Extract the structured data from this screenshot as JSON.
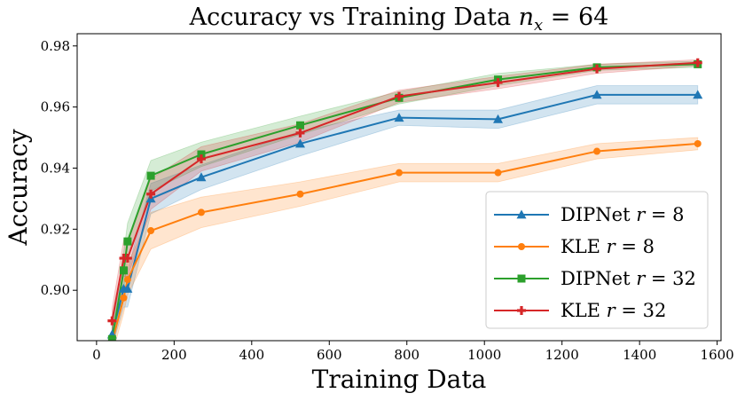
{
  "chart_data": {
    "type": "line",
    "title": "Accuracy vs Training Data n_x = 64",
    "title_parts": {
      "main": "Accuracy vs Training Data ",
      "var": "n",
      "sub": "x",
      "rest": " = 64"
    },
    "xlabel": "Training Data",
    "ylabel": "Accuracy",
    "xlim": [
      -50,
      1610
    ],
    "ylim": [
      0.8835,
      0.984
    ],
    "xticks": [
      0,
      200,
      400,
      600,
      800,
      1000,
      1200,
      1400,
      1600
    ],
    "yticks": [
      0.9,
      0.92,
      0.94,
      0.96,
      0.98
    ],
    "ytick_labels": [
      "0.90",
      "0.92",
      "0.94",
      "0.96",
      "0.98"
    ],
    "legend_position": "lower-right",
    "x": [
      40,
      70,
      80,
      140,
      270,
      525,
      780,
      1035,
      1290,
      1550
    ],
    "series": [
      {
        "name": "DIPNet r = 8",
        "legend": {
          "base": "DIPNet ",
          "var": "r",
          "rest": " = 8"
        },
        "color": "#1f77b4",
        "marker": "triangle",
        "values": [
          0.8855,
          0.9005,
          0.9005,
          0.93,
          0.937,
          0.948,
          0.9565,
          0.956,
          0.964,
          0.964
        ],
        "band": [
          0.004,
          0.006,
          0.006,
          0.005,
          0.004,
          0.004,
          0.0025,
          0.003,
          0.003,
          0.003
        ]
      },
      {
        "name": "KLE r = 8",
        "legend": {
          "base": "KLE ",
          "var": "r",
          "rest": " = 8"
        },
        "color": "#ff7f0e",
        "marker": "circle",
        "values": [
          0.883,
          0.8975,
          0.9035,
          0.9195,
          0.9255,
          0.9315,
          0.9385,
          0.9385,
          0.9455,
          0.948
        ],
        "band": [
          0.004,
          0.005,
          0.005,
          0.006,
          0.005,
          0.004,
          0.003,
          0.003,
          0.0025,
          0.002
        ]
      },
      {
        "name": "DIPNet r = 32",
        "legend": {
          "base": "DIPNet ",
          "var": "r",
          "rest": " = 32"
        },
        "color": "#2ca02c",
        "marker": "square",
        "values": [
          0.884,
          0.9065,
          0.916,
          0.9375,
          0.9445,
          0.954,
          0.963,
          0.969,
          0.973,
          0.974
        ],
        "band": [
          0.004,
          0.006,
          0.006,
          0.005,
          0.004,
          0.003,
          0.002,
          0.002,
          0.001,
          0.001
        ]
      },
      {
        "name": "KLE r = 32",
        "legend": {
          "base": "KLE ",
          "var": "r",
          "rest": " = 32"
        },
        "color": "#d62728",
        "marker": "plus",
        "values": [
          0.89,
          0.9105,
          0.9105,
          0.9315,
          0.943,
          0.9515,
          0.9635,
          0.968,
          0.9725,
          0.9745
        ],
        "band": [
          0.004,
          0.006,
          0.006,
          0.005,
          0.004,
          0.003,
          0.002,
          0.002,
          0.0015,
          0.001
        ]
      }
    ]
  }
}
